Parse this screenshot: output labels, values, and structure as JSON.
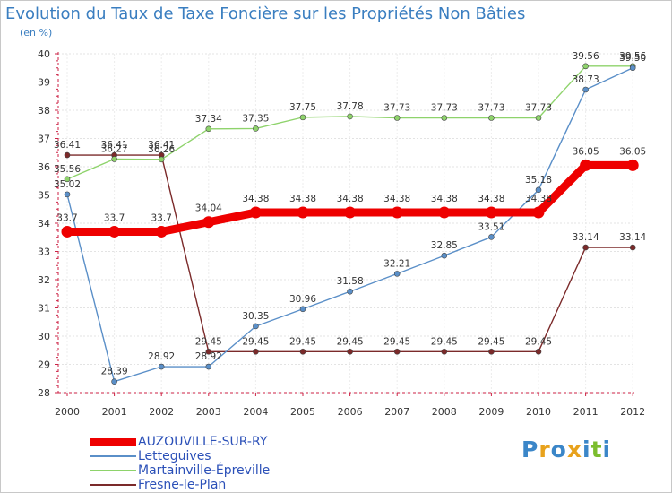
{
  "chart_data": {
    "type": "line",
    "title": "Evolution du Taux de Taxe Foncière sur les Propriétés Non Bâties",
    "ylabel": "(en %)",
    "ylim": [
      28,
      40
    ],
    "yticks": [
      "28",
      "29",
      "30",
      "31",
      "32",
      "33",
      "34",
      "35",
      "36",
      "37",
      "38",
      "39",
      "40"
    ],
    "categories": [
      "2000",
      "2001",
      "2002",
      "2003",
      "2004",
      "2005",
      "2006",
      "2007",
      "2008",
      "2009",
      "2010",
      "2011",
      "2012"
    ],
    "series": [
      {
        "name": "Fresne-le-Plan",
        "color": "#7b2a2a",
        "values": [
          36.41,
          36.41,
          36.41,
          29.45,
          29.45,
          29.45,
          29.45,
          29.45,
          29.45,
          29.45,
          29.45,
          33.14,
          33.14
        ],
        "labels": [
          "36.41",
          "36.41",
          "36.41",
          "29.45",
          "29.45",
          "29.45",
          "29.45",
          "29.45",
          "29.45",
          "29.45",
          "29.45",
          "33.14",
          "33.14"
        ]
      },
      {
        "name": "Martainville-Épreville",
        "color": "#8ed36b",
        "values": [
          35.56,
          36.27,
          36.26,
          37.34,
          37.35,
          37.75,
          37.78,
          37.73,
          37.73,
          37.73,
          37.73,
          39.56,
          39.56
        ],
        "labels": [
          "35.56",
          "36.27",
          "36.26",
          "37.34",
          "37.35",
          "37.75",
          "37.78",
          "37.73",
          "37.73",
          "37.73",
          "37.73",
          "39.56",
          "39.56"
        ]
      },
      {
        "name": "Letteguives",
        "color": "#5a8fc8",
        "values": [
          35.02,
          28.39,
          28.92,
          28.92,
          30.35,
          30.96,
          31.58,
          32.21,
          32.85,
          33.51,
          35.18,
          38.73,
          39.5
        ],
        "labels": [
          "35.02",
          "28.39",
          "28.92",
          "28.92",
          "30.35",
          "30.96",
          "31.58",
          "32.21",
          "32.85",
          "33.51",
          "35.18",
          "38.73",
          "39.50"
        ]
      },
      {
        "name": "AUZOUVILLE-SUR-RY",
        "color": "#ee0000",
        "values": [
          33.7,
          33.7,
          33.7,
          34.04,
          34.38,
          34.38,
          34.38,
          34.38,
          34.38,
          34.38,
          34.38,
          36.05,
          36.05
        ],
        "labels": [
          "33.7",
          "33.7",
          "33.7",
          "34.04",
          "34.38",
          "34.38",
          "34.38",
          "34.38",
          "34.38",
          "34.38",
          "34.38",
          "36.05",
          "36.05"
        ]
      }
    ],
    "legend_position": "bottom-left"
  },
  "legend": [
    {
      "label": "AUZOUVILLE-SUR-RY",
      "color": "#ee0000",
      "thick": true
    },
    {
      "label": "Letteguives",
      "color": "#5a8fc8",
      "thick": false
    },
    {
      "label": "Martainville-Épreville",
      "color": "#8ed36b",
      "thick": false
    },
    {
      "label": "Fresne-le-Plan",
      "color": "#7b2a2a",
      "thick": false
    }
  ],
  "logo": {
    "letters": [
      "P",
      "r",
      "o",
      "x",
      "i",
      "t",
      "i"
    ],
    "colors": [
      "#3b86c8",
      "#e8a21c",
      "#3b86c8",
      "#e8a21c",
      "#3b86c8",
      "#7cbd2e",
      "#3b86c8"
    ]
  }
}
